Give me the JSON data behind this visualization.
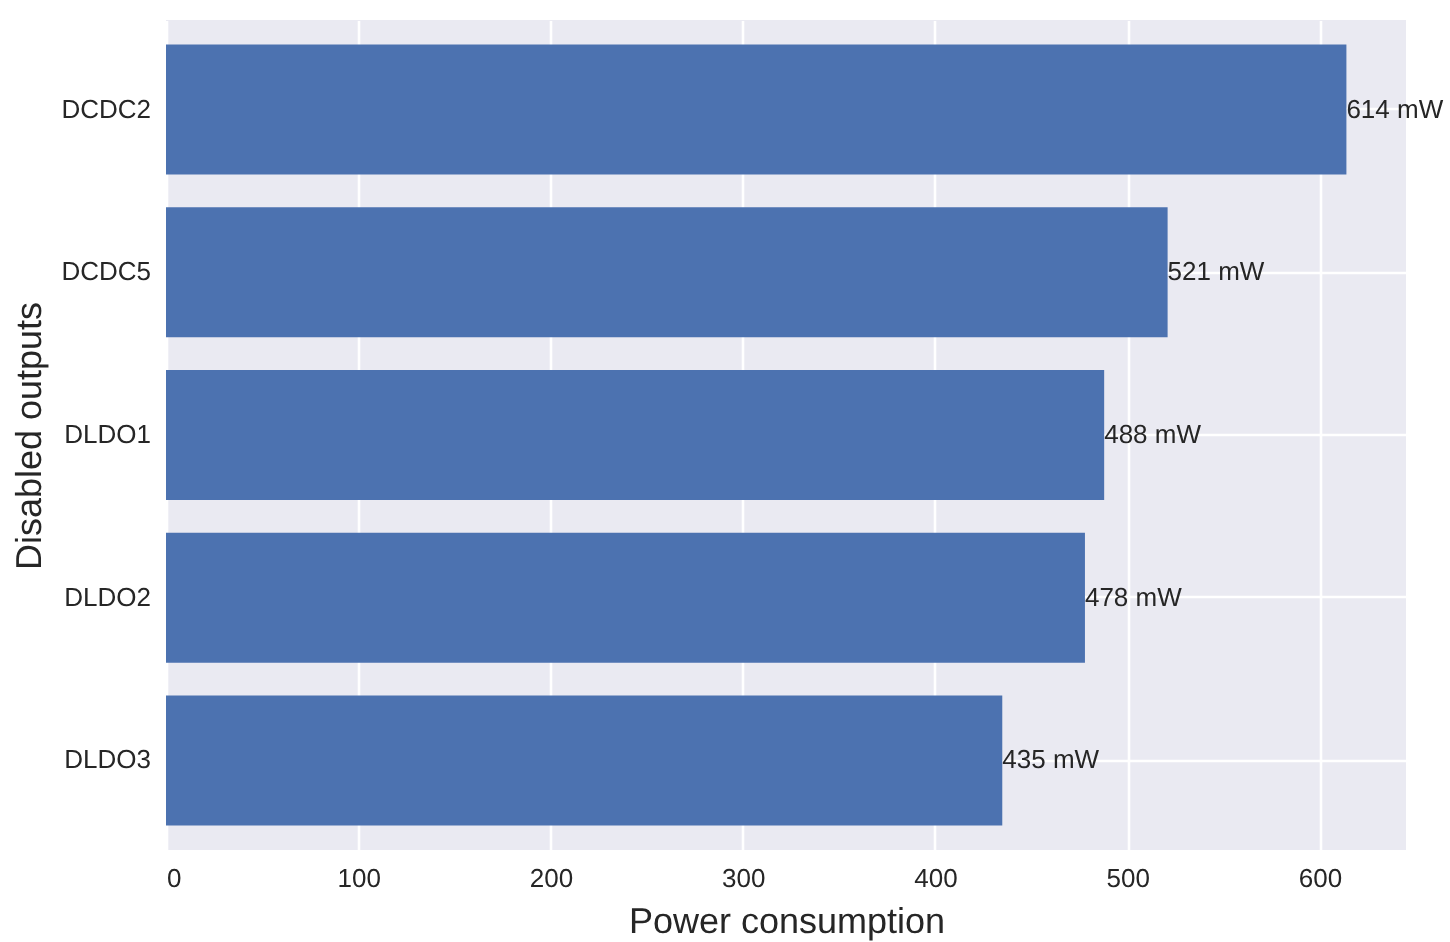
{
  "chart_data": {
    "type": "bar",
    "orientation": "horizontal",
    "xlabel": "Power consumption",
    "ylabel": "Disabled outputs",
    "categories": [
      "DCDC2",
      "DCDC5",
      "DLDO1",
      "DLDO2",
      "DLDO3"
    ],
    "values": [
      614,
      521,
      488,
      478,
      435
    ],
    "value_labels": [
      "614 mW",
      "521 mW",
      "488 mW",
      "478 mW",
      "435 mW"
    ],
    "color": "#4c72b0",
    "xlim": [
      0,
      645
    ],
    "xticks": [
      0,
      100,
      200,
      300,
      400,
      500,
      600
    ],
    "grid": true
  }
}
